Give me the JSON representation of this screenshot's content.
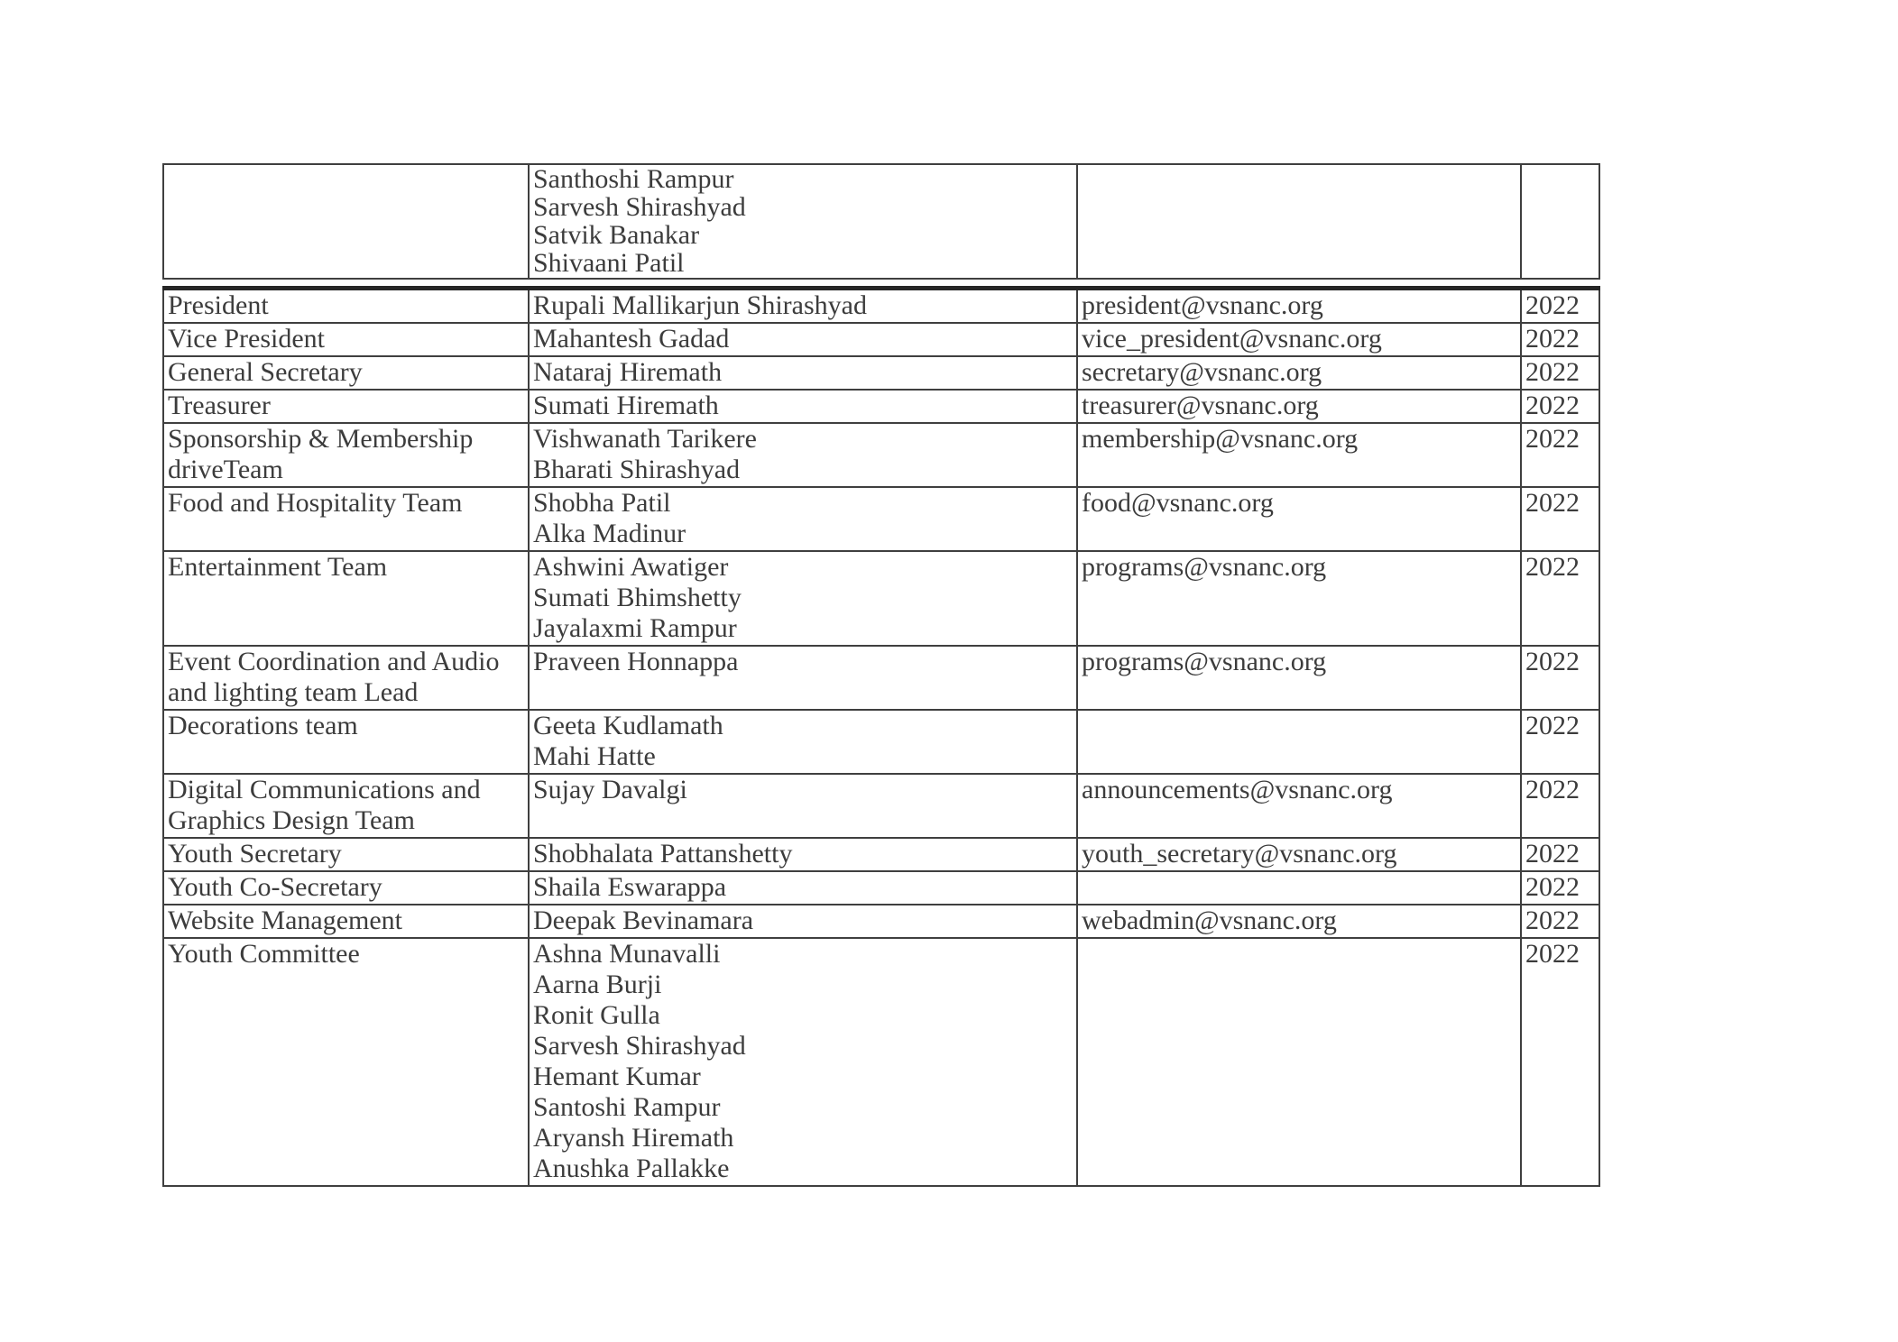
{
  "document": {
    "kind": "committee-roster-table",
    "year_column_value": "2022",
    "colors": {
      "background": "#ffffff",
      "text": "#3c3c3c",
      "border": "#3f3f3f",
      "thick_divider": "#262626"
    },
    "table": {
      "columns": [
        "role",
        "members",
        "email",
        "year"
      ],
      "rows": [
        {
          "continuation": true,
          "role": "",
          "members": [
            "Santhoshi Rampur",
            "Sarvesh Shirashyad",
            "Satvik Banakar",
            "Shivaani Patil"
          ],
          "email": "",
          "year": ""
        },
        {
          "role": "President",
          "members": [
            "Rupali Mallikarjun Shirashyad"
          ],
          "email": "president@vsnanc.org",
          "year": "2022"
        },
        {
          "role": "Vice President",
          "members": [
            "Mahantesh Gadad"
          ],
          "email": "vice_president@vsnanc.org",
          "year": "2022"
        },
        {
          "role": "General Secretary",
          "members": [
            "Nataraj Hiremath"
          ],
          "email": "secretary@vsnanc.org",
          "year": "2022"
        },
        {
          "role": "Treasurer",
          "members": [
            "Sumati Hiremath"
          ],
          "email": "treasurer@vsnanc.org",
          "year": "2022"
        },
        {
          "role": "Sponsorship & Membership\ndriveTeam",
          "members": [
            "Vishwanath Tarikere",
            "Bharati Shirashyad"
          ],
          "email": "membership@vsnanc.org",
          "year": "2022"
        },
        {
          "role": "Food and Hospitality Team",
          "members": [
            "Shobha Patil",
            "Alka Madinur"
          ],
          "email": "food@vsnanc.org",
          "year": "2022"
        },
        {
          "role": "Entertainment Team",
          "members": [
            "Ashwini Awatiger",
            "Sumati Bhimshetty",
            "Jayalaxmi Rampur"
          ],
          "email": "programs@vsnanc.org",
          "year": "2022"
        },
        {
          "role": "Event Coordination and Audio\nand lighting team Lead",
          "members": [
            "Praveen Honnappa"
          ],
          "email": "programs@vsnanc.org",
          "year": "2022"
        },
        {
          "role": "Decorations team",
          "members": [
            "Geeta Kudlamath",
            "Mahi Hatte"
          ],
          "email": "",
          "year": "2022"
        },
        {
          "role": "Digital Communications and\nGraphics Design Team",
          "members": [
            "Sujay Davalgi"
          ],
          "email": "announcements@vsnanc.org",
          "year": "2022"
        },
        {
          "role": "Youth Secretary",
          "members": [
            "Shobhalata Pattanshetty"
          ],
          "email": "youth_secretary@vsnanc.org",
          "year": "2022"
        },
        {
          "role": "Youth Co-Secretary",
          "members": [
            "Shaila Eswarappa"
          ],
          "email": "",
          "year": "2022"
        },
        {
          "role": "Website Management",
          "members": [
            "Deepak Bevinamara"
          ],
          "email": "webadmin@vsnanc.org",
          "year": "2022"
        },
        {
          "role": "Youth Committee",
          "members": [
            "Ashna Munavalli",
            "Aarna Burji",
            "Ronit Gulla",
            "Sarvesh Shirashyad",
            "Hemant Kumar",
            "Santoshi Rampur",
            "Aryansh Hiremath",
            "Anushka Pallakke"
          ],
          "email": "",
          "year": "2022"
        }
      ]
    }
  }
}
